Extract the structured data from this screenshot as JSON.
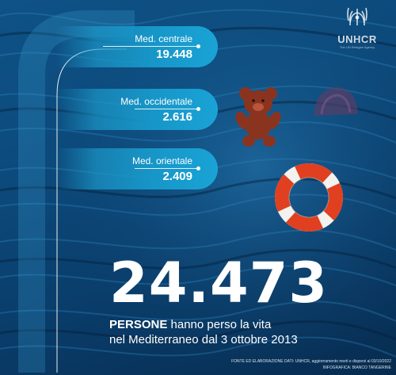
{
  "logo": {
    "name": "UNHCR",
    "tagline": "The UN Refugee Agency"
  },
  "regions": [
    {
      "label": "Med. centrale",
      "value": "19.448"
    },
    {
      "label": "Med. occidentale",
      "value": "2.616"
    },
    {
      "label": "Med. orientale",
      "value": "2.409"
    }
  ],
  "total": {
    "value": "24.473",
    "caption_bold": "PERSONE",
    "caption_line1_rest": " hanno perso la vita",
    "caption_line2": "nel Mediterraneo dal 3 ottobre 2013"
  },
  "footer": {
    "source": "FONTE ED ELABORAZIONE DATI: UNHCR, aggiornamento morti e dispersi al 03/10/2022",
    "credit": "INFOGRAFICA: BIANCO TANGERINE"
  },
  "icons": [
    "teddy-bear-icon",
    "life-ring-icon",
    "cap-icon",
    "unhcr-emblem-icon"
  ],
  "colors": {
    "sea_dark": "#072b4f",
    "sea_mid": "#0c4a7c",
    "pill": "#1796c8",
    "teddy": "#8a3420",
    "life_ring_red": "#e0401f",
    "text": "#ffffff"
  }
}
